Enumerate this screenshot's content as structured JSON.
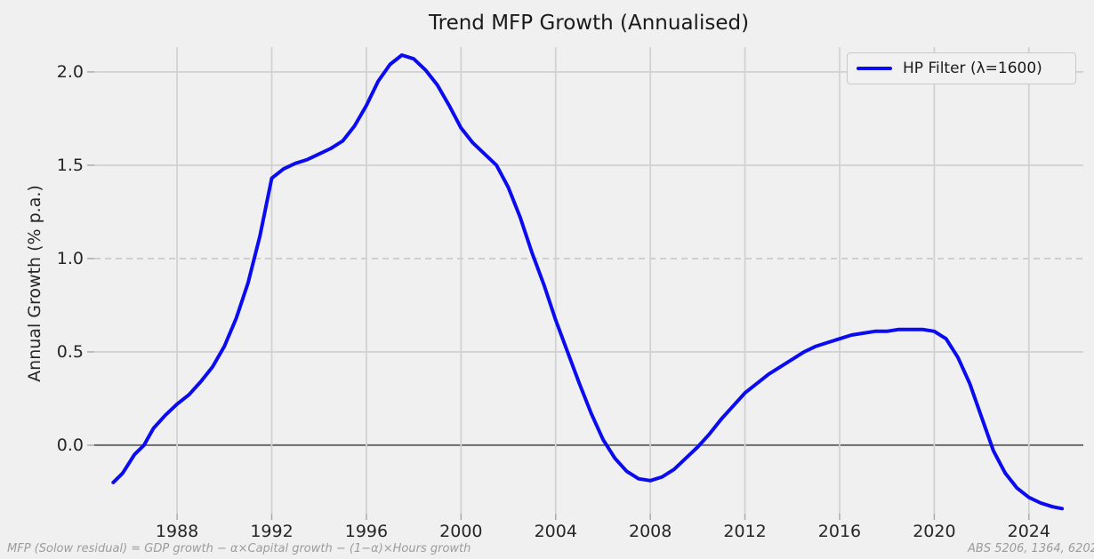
{
  "title": "Trend MFP Growth (Annualised)",
  "ylabel": "Annual Growth (% p.a.)",
  "legend": {
    "label": "HP Filter (λ=1600)"
  },
  "footnote_left": "MFP (Solow residual) = GDP growth − α×Capital growth − (1−α)×Hours growth",
  "footnote_right": "ABS 5206, 1364, 6202",
  "colors": {
    "background": "#f0f0f0",
    "line": "#0b0bf0",
    "grid": "#d2d2d2",
    "grid_dashed": "#c8c8c8",
    "zero_line": "#6a6a6a",
    "tick": "#ababab",
    "text": "#262626",
    "muted": "#9c9c9c"
  },
  "chart_data": {
    "type": "line",
    "title": "Trend MFP Growth (Annualised)",
    "xlabel": "",
    "ylabel": "Annual Growth (% p.a.)",
    "xlim": [
      1984.5,
      2026.3
    ],
    "ylim": [
      -0.367,
      2.133
    ],
    "x_ticks": [
      1988,
      1992,
      1996,
      2000,
      2004,
      2008,
      2012,
      2016,
      2020,
      2024
    ],
    "y_ticks": [
      0.0,
      0.5,
      1.0,
      1.5,
      2.0
    ],
    "grid": "on",
    "zero_line_y": 0.0,
    "dashed_gridline_y": 1.0,
    "legend_position": "upper right",
    "series": [
      {
        "name": "HP Filter (λ=1600)",
        "color": "#0b0bf0",
        "x": [
          1985.3,
          1985.7,
          1986.2,
          1986.6,
          1987.0,
          1987.5,
          1988.0,
          1988.5,
          1989.0,
          1989.5,
          1990.0,
          1990.5,
          1991.0,
          1991.5,
          1992.0,
          1992.5,
          1993.0,
          1993.5,
          1994.0,
          1994.5,
          1995.0,
          1995.5,
          1996.0,
          1996.5,
          1997.0,
          1997.5,
          1998.0,
          1998.5,
          1999.0,
          1999.5,
          2000.0,
          2000.5,
          2001.0,
          2001.5,
          2002.0,
          2002.5,
          2003.0,
          2003.5,
          2004.0,
          2004.5,
          2005.0,
          2005.5,
          2006.0,
          2006.5,
          2007.0,
          2007.5,
          2008.0,
          2008.5,
          2009.0,
          2009.5,
          2010.0,
          2010.5,
          2011.0,
          2011.5,
          2012.0,
          2012.5,
          2013.0,
          2013.5,
          2014.0,
          2014.5,
          2015.0,
          2015.5,
          2016.0,
          2016.5,
          2017.0,
          2017.5,
          2018.0,
          2018.5,
          2019.0,
          2019.5,
          2020.0,
          2020.5,
          2021.0,
          2021.5,
          2022.0,
          2022.5,
          2023.0,
          2023.5,
          2024.0,
          2024.5,
          2025.0,
          2025.4
        ],
        "y": [
          -0.2,
          -0.15,
          -0.05,
          0.0,
          0.09,
          0.16,
          0.22,
          0.27,
          0.34,
          0.42,
          0.53,
          0.68,
          0.87,
          1.12,
          1.43,
          1.48,
          1.51,
          1.53,
          1.56,
          1.59,
          1.63,
          1.71,
          1.82,
          1.95,
          2.04,
          2.09,
          2.07,
          2.01,
          1.93,
          1.82,
          1.7,
          1.62,
          1.56,
          1.5,
          1.38,
          1.22,
          1.03,
          0.86,
          0.67,
          0.5,
          0.33,
          0.17,
          0.03,
          -0.07,
          -0.14,
          -0.18,
          -0.19,
          -0.17,
          -0.13,
          -0.07,
          -0.01,
          0.06,
          0.14,
          0.21,
          0.28,
          0.33,
          0.38,
          0.42,
          0.46,
          0.5,
          0.53,
          0.55,
          0.57,
          0.59,
          0.6,
          0.61,
          0.61,
          0.62,
          0.62,
          0.62,
          0.61,
          0.57,
          0.47,
          0.33,
          0.15,
          -0.03,
          -0.15,
          -0.23,
          -0.28,
          -0.31,
          -0.33,
          -0.34
        ]
      }
    ]
  }
}
